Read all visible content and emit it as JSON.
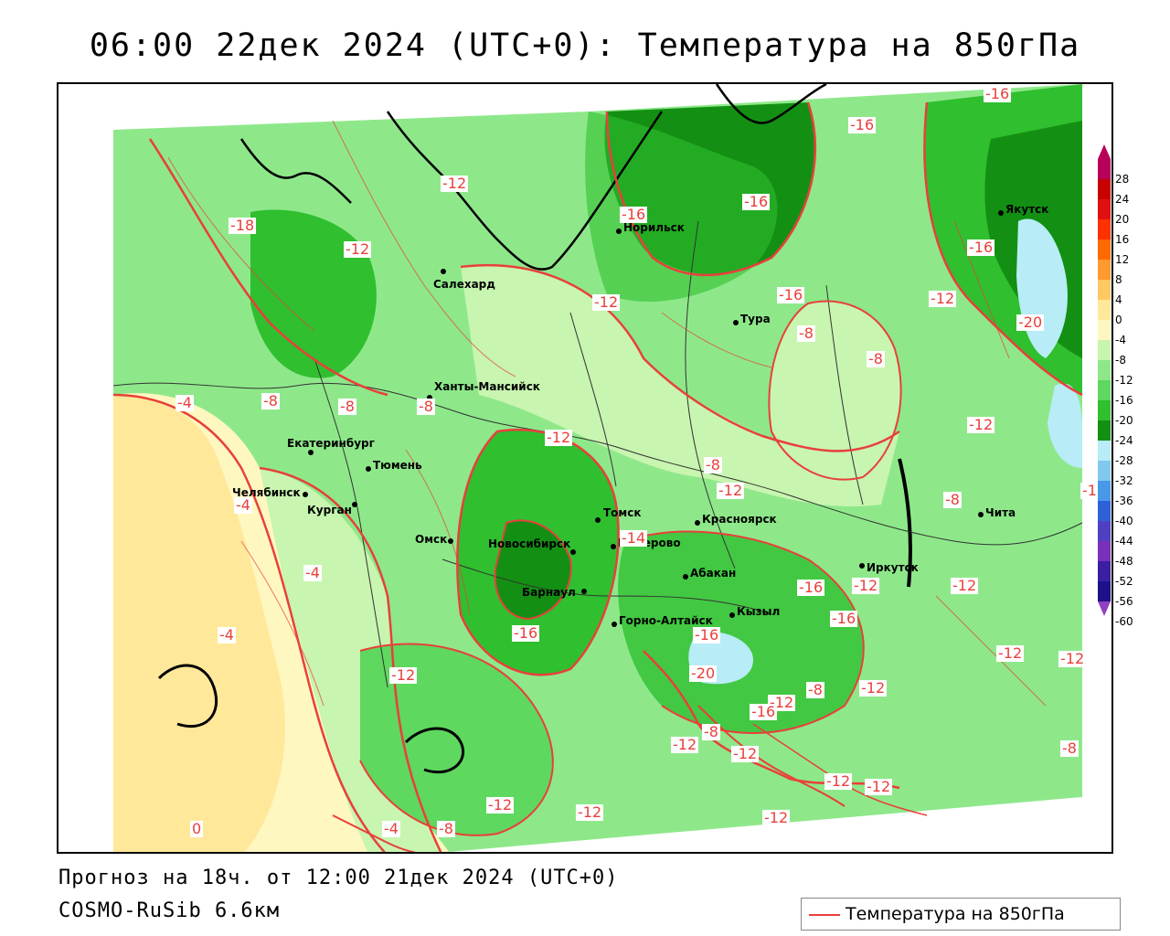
{
  "title": "06:00 22дек 2024 (UTC+0): Температура на 850гПа",
  "footer": {
    "forecast": "Прогноз на 18ч. от 12:00 21дек 2024 (UTC+0)",
    "model": "COSMO-RuSib 6.6км"
  },
  "legend": {
    "label": "Температура на 850гПа",
    "line_color": "#e8403b"
  },
  "color_scale": {
    "ticks": [
      "28",
      "24",
      "20",
      "16",
      "12",
      "8",
      "4",
      "0",
      "-4",
      "-8",
      "-12",
      "-16",
      "-20",
      "-24",
      "-28",
      "-32",
      "-36",
      "-40",
      "-44",
      "-48",
      "-52",
      "-56",
      "-60"
    ],
    "colors": [
      "#b8005a",
      "#c80000",
      "#e01010",
      "#ff3000",
      "#ff6a00",
      "#ff9a30",
      "#ffc860",
      "#ffe89a",
      "#fff7c0",
      "#c8f5b0",
      "#8ee88a",
      "#5ed85e",
      "#2fbf2f",
      "#139013",
      "#b8ecf6",
      "#7fc8f0",
      "#4a98e8",
      "#3060d8",
      "#5040c0",
      "#7a30b8",
      "#3a1fa0",
      "#20108a",
      "#9040c0"
    ]
  },
  "cities": [
    {
      "name": "Норильск",
      "dot_class": "c1"
    },
    {
      "name": "Якутск",
      "dot_class": "c2"
    },
    {
      "name": "Салехард",
      "dot_class": "c3"
    },
    {
      "name": "Тура",
      "dot_class": "c4"
    },
    {
      "name": "Ханты-Мансийск",
      "dot_class": "c5"
    },
    {
      "name": "Екатеринбург",
      "dot_class": "c6"
    },
    {
      "name": "Тюмень",
      "dot_class": "c7"
    },
    {
      "name": "Челябинск",
      "dot_class": "c8"
    },
    {
      "name": "Курган",
      "dot_class": "c9"
    },
    {
      "name": "Омск",
      "dot_class": "c10"
    },
    {
      "name": "Новосибирск",
      "dot_class": "c11"
    },
    {
      "name": "Томск",
      "dot_class": "c12"
    },
    {
      "name": "Кемерово",
      "dot_class": "c13"
    },
    {
      "name": "Красноярск",
      "dot_class": "c14"
    },
    {
      "name": "Барнаул",
      "dot_class": "c15"
    },
    {
      "name": "Абакан",
      "dot_class": "c16"
    },
    {
      "name": "Иркутск",
      "dot_class": "c17"
    },
    {
      "name": "Чита",
      "dot_class": "c18"
    },
    {
      "name": "Кызыл",
      "dot_class": "c19"
    },
    {
      "name": "Горно-Алтайск",
      "dot_class": "c20"
    }
  ],
  "isolines": [
    "-16",
    "-16",
    "-12",
    "-16",
    "-16",
    "-18",
    "-12",
    "-16",
    "-12",
    "-12",
    "-16",
    "-8",
    "-8",
    "-8",
    "-8",
    "-8",
    "-4",
    "-12",
    "-8",
    "-12",
    "-20",
    "-12",
    "-16",
    "-4",
    "-4",
    "-14",
    "-8",
    "-12",
    "-16",
    "-12",
    "-12",
    "-16",
    "-16",
    "-16",
    "-20",
    "-4",
    "-12",
    "-12",
    "-12",
    "-8",
    "-12",
    "-16",
    "-8",
    "-12",
    "-12",
    "-12",
    "-8",
    "0",
    "-4",
    "-8",
    "-12",
    "-12",
    "-12",
    "-12"
  ]
}
